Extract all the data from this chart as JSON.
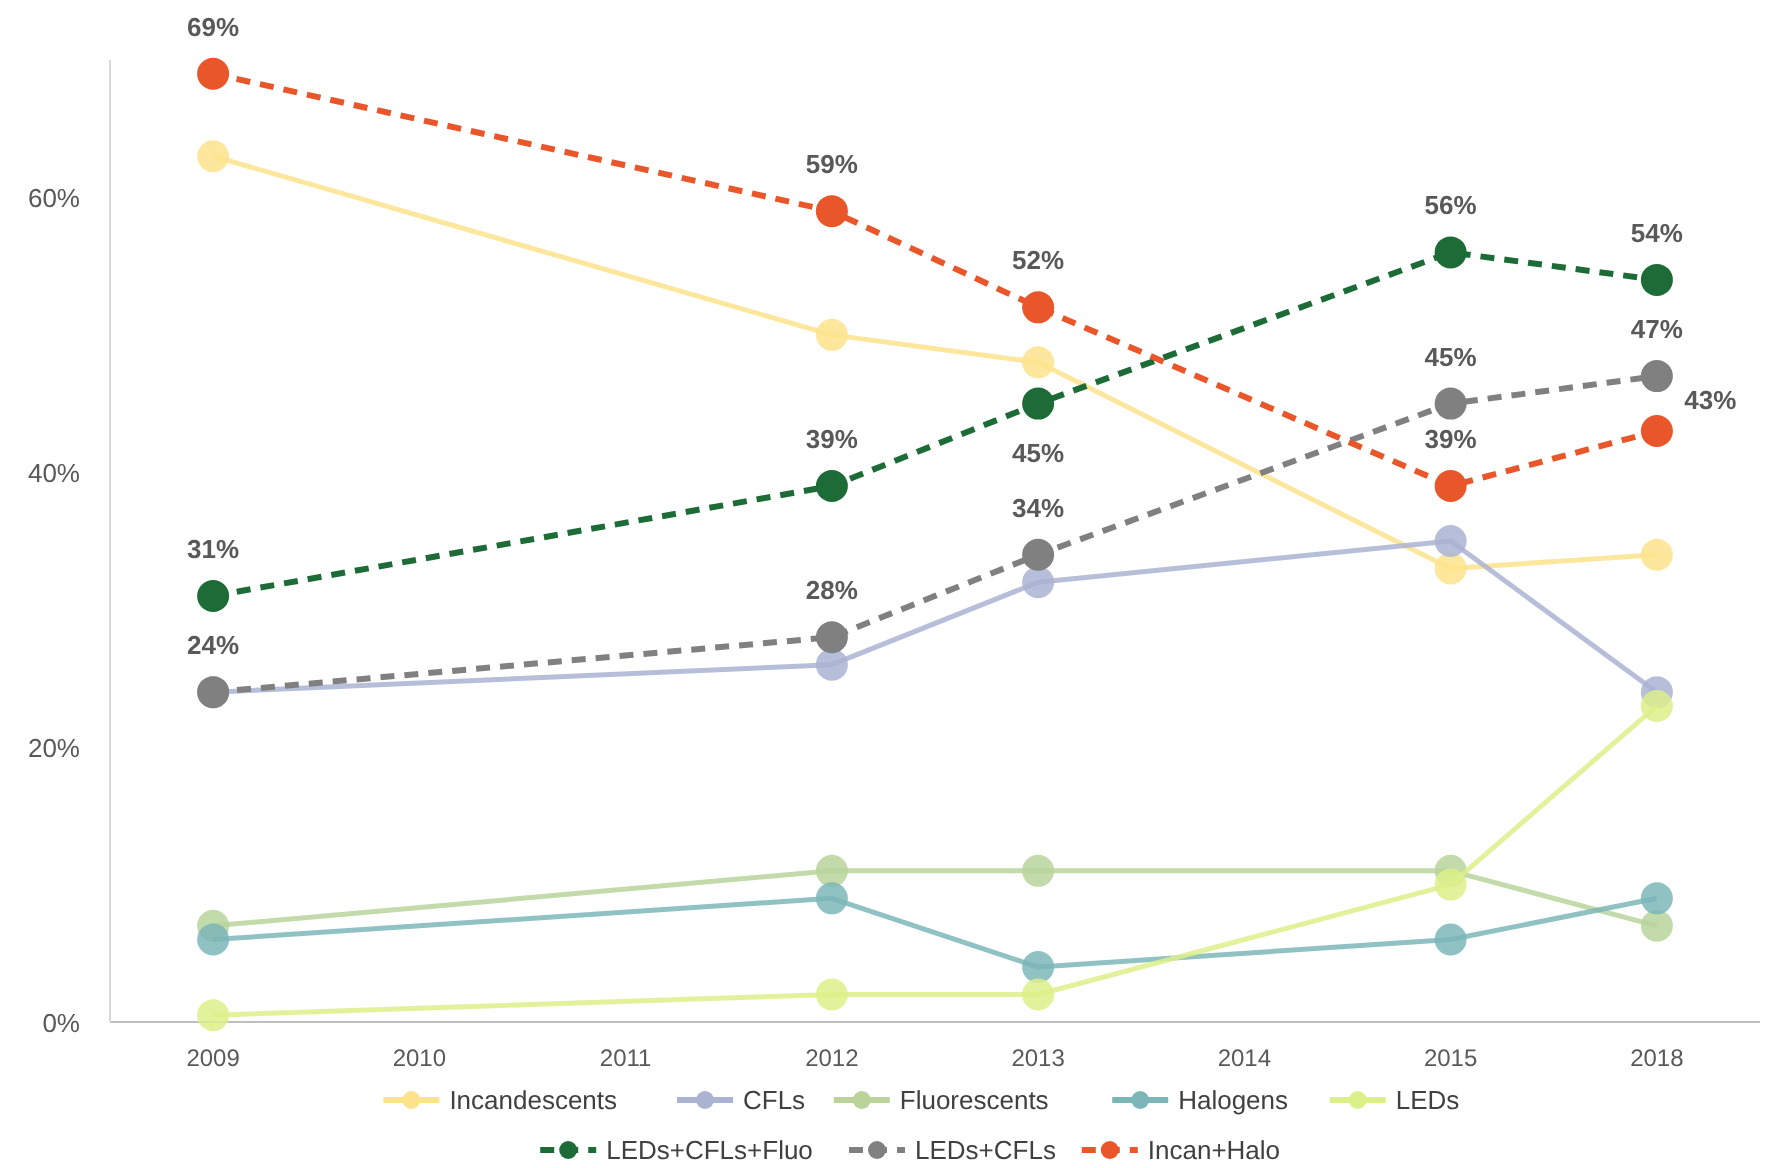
{
  "chart_data": {
    "type": "line",
    "categories": [
      "2009",
      "2010",
      "2011",
      "2012",
      "2013",
      "2014",
      "2015",
      "2018"
    ],
    "ylim": [
      0,
      70
    ],
    "yticks": [
      {
        "value": 0,
        "label": "0%"
      },
      {
        "value": 20,
        "label": "20%"
      },
      {
        "value": 40,
        "label": "40%"
      },
      {
        "value": 60,
        "label": "60%"
      }
    ],
    "grid": false,
    "legend": "bottom",
    "marker": "circle",
    "series": [
      {
        "name": "Incandescents",
        "color": "#fde38c",
        "line_style": "solid",
        "values": [
          63,
          null,
          null,
          50,
          48,
          null,
          33,
          34
        ]
      },
      {
        "name": "CFLs",
        "color": "#aab3d2",
        "line_style": "solid",
        "values": [
          24,
          null,
          null,
          26,
          32,
          null,
          35,
          24
        ]
      },
      {
        "name": "Fluorescents",
        "color": "#b9d39b",
        "line_style": "solid",
        "values": [
          7,
          null,
          null,
          11,
          11,
          null,
          11,
          7
        ]
      },
      {
        "name": "Halogens",
        "color": "#7cb6b9",
        "line_style": "solid",
        "values": [
          6,
          null,
          null,
          9,
          4,
          null,
          6,
          9
        ]
      },
      {
        "name": "LEDs",
        "color": "#dcf08a",
        "line_style": "solid",
        "values": [
          0.5,
          null,
          null,
          2,
          2,
          null,
          10,
          23
        ]
      },
      {
        "name": "LEDs+CFLs+Fluo",
        "color": "#1d6b36",
        "line_style": "dashed",
        "values": [
          31,
          null,
          null,
          39,
          45,
          null,
          56,
          54
        ],
        "value_labels": [
          "31%",
          null,
          null,
          "39%",
          "45%",
          null,
          "56%",
          "54%"
        ]
      },
      {
        "name": "LEDs+CFLs",
        "color": "#808080",
        "line_style": "dashed",
        "values": [
          24,
          null,
          null,
          28,
          34,
          null,
          45,
          47
        ],
        "value_labels": [
          "24%",
          null,
          null,
          "28%",
          "34%",
          null,
          "45%",
          "47%"
        ]
      },
      {
        "name": "Incan+Halo",
        "color": "#e8562a",
        "line_style": "dashed",
        "values": [
          69,
          null,
          null,
          59,
          52,
          null,
          39,
          43
        ],
        "value_labels": [
          "69%",
          null,
          null,
          "59%",
          "52%",
          null,
          "39%",
          "43%"
        ]
      }
    ]
  }
}
